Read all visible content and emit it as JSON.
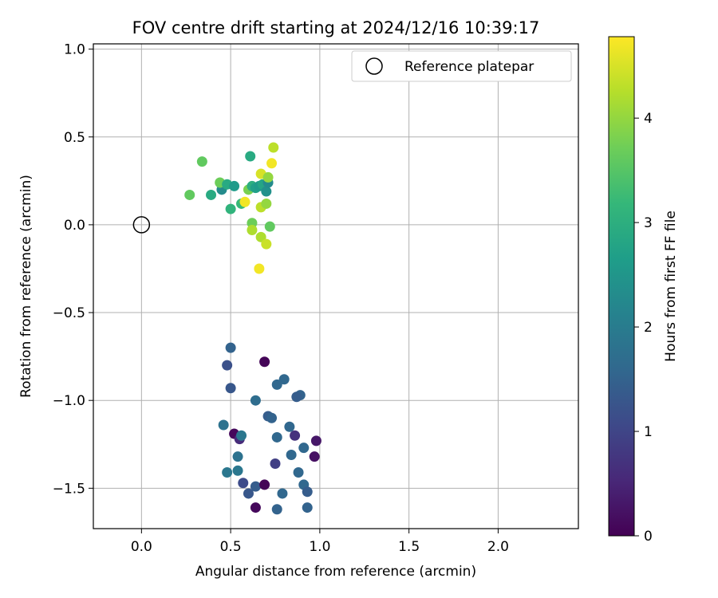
{
  "chart_data": {
    "type": "scatter",
    "title": "FOV centre drift starting at 2024/12/16 10:39:17",
    "xlabel": "Angular distance from reference (arcmin)",
    "ylabel": "Rotation from reference (arcmin)",
    "xlim": [
      -0.27,
      2.45
    ],
    "ylim": [
      -1.73,
      1.03
    ],
    "xticks": [
      0.0,
      0.5,
      1.0,
      1.5,
      2.0
    ],
    "xtick_labels": [
      "0.0",
      "0.5",
      "1.0",
      "1.5",
      "2.0"
    ],
    "yticks": [
      -1.5,
      -1.0,
      -0.5,
      0.0,
      0.5,
      1.0
    ],
    "ytick_labels": [
      "−1.5",
      "−1.0",
      "−0.5",
      "0.0",
      "0.5",
      "1.0"
    ],
    "grid": true,
    "legend": {
      "position": "top-right",
      "entries": [
        "Reference platepar"
      ]
    },
    "reference_point": {
      "x": 0.0,
      "y": 0.0,
      "label": "Reference platepar"
    },
    "colorbar": {
      "label": "Hours from first FF file",
      "colormap": "viridis",
      "range": [
        0,
        4.78
      ],
      "ticks": [
        0,
        1,
        2,
        3,
        4
      ],
      "tick_labels": [
        "0",
        "1",
        "2",
        "3",
        "4"
      ]
    },
    "points": [
      {
        "x": 0.69,
        "y": -0.78,
        "h": 0.05
      },
      {
        "x": 0.8,
        "y": -0.88,
        "h": 1.6
      },
      {
        "x": 0.76,
        "y": -0.91,
        "h": 1.6
      },
      {
        "x": 0.5,
        "y": -0.7,
        "h": 1.5
      },
      {
        "x": 0.48,
        "y": -0.8,
        "h": 1.2
      },
      {
        "x": 0.5,
        "y": -0.93,
        "h": 1.3
      },
      {
        "x": 0.64,
        "y": -1.0,
        "h": 1.7
      },
      {
        "x": 0.89,
        "y": -0.97,
        "h": 1.5
      },
      {
        "x": 0.87,
        "y": -0.98,
        "h": 1.4
      },
      {
        "x": 0.71,
        "y": -1.09,
        "h": 1.4
      },
      {
        "x": 0.73,
        "y": -1.1,
        "h": 1.5
      },
      {
        "x": 0.46,
        "y": -1.14,
        "h": 1.8
      },
      {
        "x": 0.52,
        "y": -1.19,
        "h": 0.1
      },
      {
        "x": 0.55,
        "y": -1.22,
        "h": 0.6
      },
      {
        "x": 0.56,
        "y": -1.2,
        "h": 1.9
      },
      {
        "x": 0.76,
        "y": -1.21,
        "h": 1.6
      },
      {
        "x": 0.83,
        "y": -1.15,
        "h": 1.6
      },
      {
        "x": 0.86,
        "y": -1.2,
        "h": 0.7
      },
      {
        "x": 0.98,
        "y": -1.23,
        "h": 0.3
      },
      {
        "x": 0.91,
        "y": -1.27,
        "h": 1.6
      },
      {
        "x": 0.84,
        "y": -1.31,
        "h": 1.6
      },
      {
        "x": 0.97,
        "y": -1.32,
        "h": 0.2
      },
      {
        "x": 0.54,
        "y": -1.32,
        "h": 1.8
      },
      {
        "x": 0.75,
        "y": -1.36,
        "h": 0.9
      },
      {
        "x": 0.48,
        "y": -1.41,
        "h": 1.9
      },
      {
        "x": 0.54,
        "y": -1.4,
        "h": 1.9
      },
      {
        "x": 0.88,
        "y": -1.41,
        "h": 1.6
      },
      {
        "x": 0.57,
        "y": -1.47,
        "h": 1.1
      },
      {
        "x": 0.64,
        "y": -1.49,
        "h": 1.4
      },
      {
        "x": 0.69,
        "y": -1.48,
        "h": 0.05
      },
      {
        "x": 0.91,
        "y": -1.48,
        "h": 1.6
      },
      {
        "x": 0.6,
        "y": -1.53,
        "h": 1.3
      },
      {
        "x": 0.79,
        "y": -1.53,
        "h": 1.6
      },
      {
        "x": 0.93,
        "y": -1.52,
        "h": 1.4
      },
      {
        "x": 0.64,
        "y": -1.61,
        "h": 0.1
      },
      {
        "x": 0.76,
        "y": -1.62,
        "h": 1.5
      },
      {
        "x": 0.93,
        "y": -1.61,
        "h": 1.5
      },
      {
        "x": 0.27,
        "y": 0.17,
        "h": 3.6
      },
      {
        "x": 0.34,
        "y": 0.36,
        "h": 3.6
      },
      {
        "x": 0.39,
        "y": 0.17,
        "h": 2.9
      },
      {
        "x": 0.45,
        "y": 0.2,
        "h": 2.3
      },
      {
        "x": 0.44,
        "y": 0.24,
        "h": 3.7
      },
      {
        "x": 0.48,
        "y": 0.23,
        "h": 2.9
      },
      {
        "x": 0.52,
        "y": 0.22,
        "h": 2.6
      },
      {
        "x": 0.5,
        "y": 0.09,
        "h": 3.1
      },
      {
        "x": 0.56,
        "y": 0.12,
        "h": 3.2
      },
      {
        "x": 0.58,
        "y": 0.13,
        "h": 4.7
      },
      {
        "x": 0.61,
        "y": 0.39,
        "h": 2.9
      },
      {
        "x": 0.6,
        "y": 0.2,
        "h": 3.8
      },
      {
        "x": 0.62,
        "y": 0.22,
        "h": 3.0
      },
      {
        "x": 0.64,
        "y": 0.21,
        "h": 2.7
      },
      {
        "x": 0.66,
        "y": 0.22,
        "h": 2.6
      },
      {
        "x": 0.68,
        "y": 0.23,
        "h": 2.8
      },
      {
        "x": 0.7,
        "y": 0.19,
        "h": 2.4
      },
      {
        "x": 0.71,
        "y": 0.24,
        "h": 2.3
      },
      {
        "x": 0.67,
        "y": 0.29,
        "h": 4.5
      },
      {
        "x": 0.71,
        "y": 0.27,
        "h": 4.0
      },
      {
        "x": 0.73,
        "y": 0.35,
        "h": 4.7
      },
      {
        "x": 0.74,
        "y": 0.44,
        "h": 4.3
      },
      {
        "x": 0.67,
        "y": 0.1,
        "h": 4.3
      },
      {
        "x": 0.7,
        "y": 0.12,
        "h": 4.0
      },
      {
        "x": 0.62,
        "y": 0.01,
        "h": 3.7
      },
      {
        "x": 0.72,
        "y": -0.01,
        "h": 3.6
      },
      {
        "x": 0.62,
        "y": -0.03,
        "h": 4.2
      },
      {
        "x": 0.67,
        "y": -0.07,
        "h": 4.2
      },
      {
        "x": 0.7,
        "y": -0.11,
        "h": 4.4
      },
      {
        "x": 0.66,
        "y": -0.25,
        "h": 4.7
      }
    ]
  }
}
